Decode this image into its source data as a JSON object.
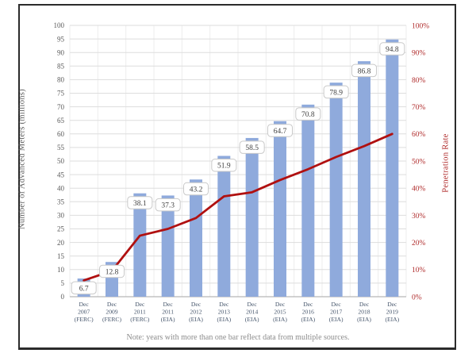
{
  "chart_data": {
    "type": "bar",
    "subtype": "bar-line-combo",
    "categories": [
      "Dec 2007 (FERC)",
      "Dec 2009 (FERC)",
      "Dec 2011 (FERC)",
      "Dec 2011 (EIA)",
      "Dec 2012 (EIA)",
      "Dec 2013 (EIA)",
      "Dec 2014 (EIA)",
      "Dec 2015 (EIA)",
      "Dec 2016 (EIA)",
      "Dec 2017 (EIA)",
      "Dec 2018 (EIA)",
      "Dec 2019 (EIA)"
    ],
    "series": [
      {
        "name": "Number of Advanced Meters (millions)",
        "type": "bar",
        "axis": "left",
        "values": [
          6.7,
          12.8,
          38.1,
          37.3,
          43.2,
          51.9,
          58.5,
          64.7,
          70.8,
          78.9,
          86.8,
          94.8
        ],
        "labels": [
          "6.7",
          "12.8",
          "38.1",
          "37.3",
          "43.2",
          "51.9",
          "58.5",
          "64.7",
          "70.8",
          "78.9",
          "86.8",
          "94.8"
        ]
      },
      {
        "name": "Penetration Rate",
        "type": "line",
        "axis": "right",
        "values": [
          6,
          9.5,
          22.5,
          25,
          29,
          37,
          38.5,
          43,
          47,
          51.5,
          55.5,
          60
        ]
      }
    ],
    "left_axis": {
      "label": "Number of Advanced Meters (millions)",
      "min": 0,
      "max": 100,
      "step": 5,
      "tick_labels": [
        "0",
        "5",
        "10",
        "15",
        "20",
        "25",
        "30",
        "35",
        "40",
        "45",
        "50",
        "55",
        "60",
        "65",
        "70",
        "75",
        "80",
        "85",
        "90",
        "95",
        "100"
      ]
    },
    "right_axis": {
      "label": "Penetration Rate",
      "min": 0,
      "max": 100,
      "step": 10,
      "suffix": "%",
      "tick_labels": [
        "0%",
        "10%",
        "20%",
        "30%",
        "40%",
        "50%",
        "60%",
        "70%",
        "80%",
        "90%",
        "100%"
      ]
    },
    "note": "Note: years with more than one bar reflect data from multiple sources.",
    "grid": true,
    "legend": "none",
    "colors": {
      "bar": "#8FAADC",
      "line": "#B01010",
      "left_tick_text": "#595959",
      "right_tick_text": "#B02C2C",
      "category_text": "#44546A",
      "gridline": "#DDDDDD",
      "vertical_gridline": "#EDEDED",
      "axis_line": "#A6A6A6",
      "label_box_border": "#C9C9C9",
      "label_box_fill": "#FFFFFF",
      "label_text": "#3F3F3F",
      "frame_border": "#2B2B2B"
    }
  }
}
